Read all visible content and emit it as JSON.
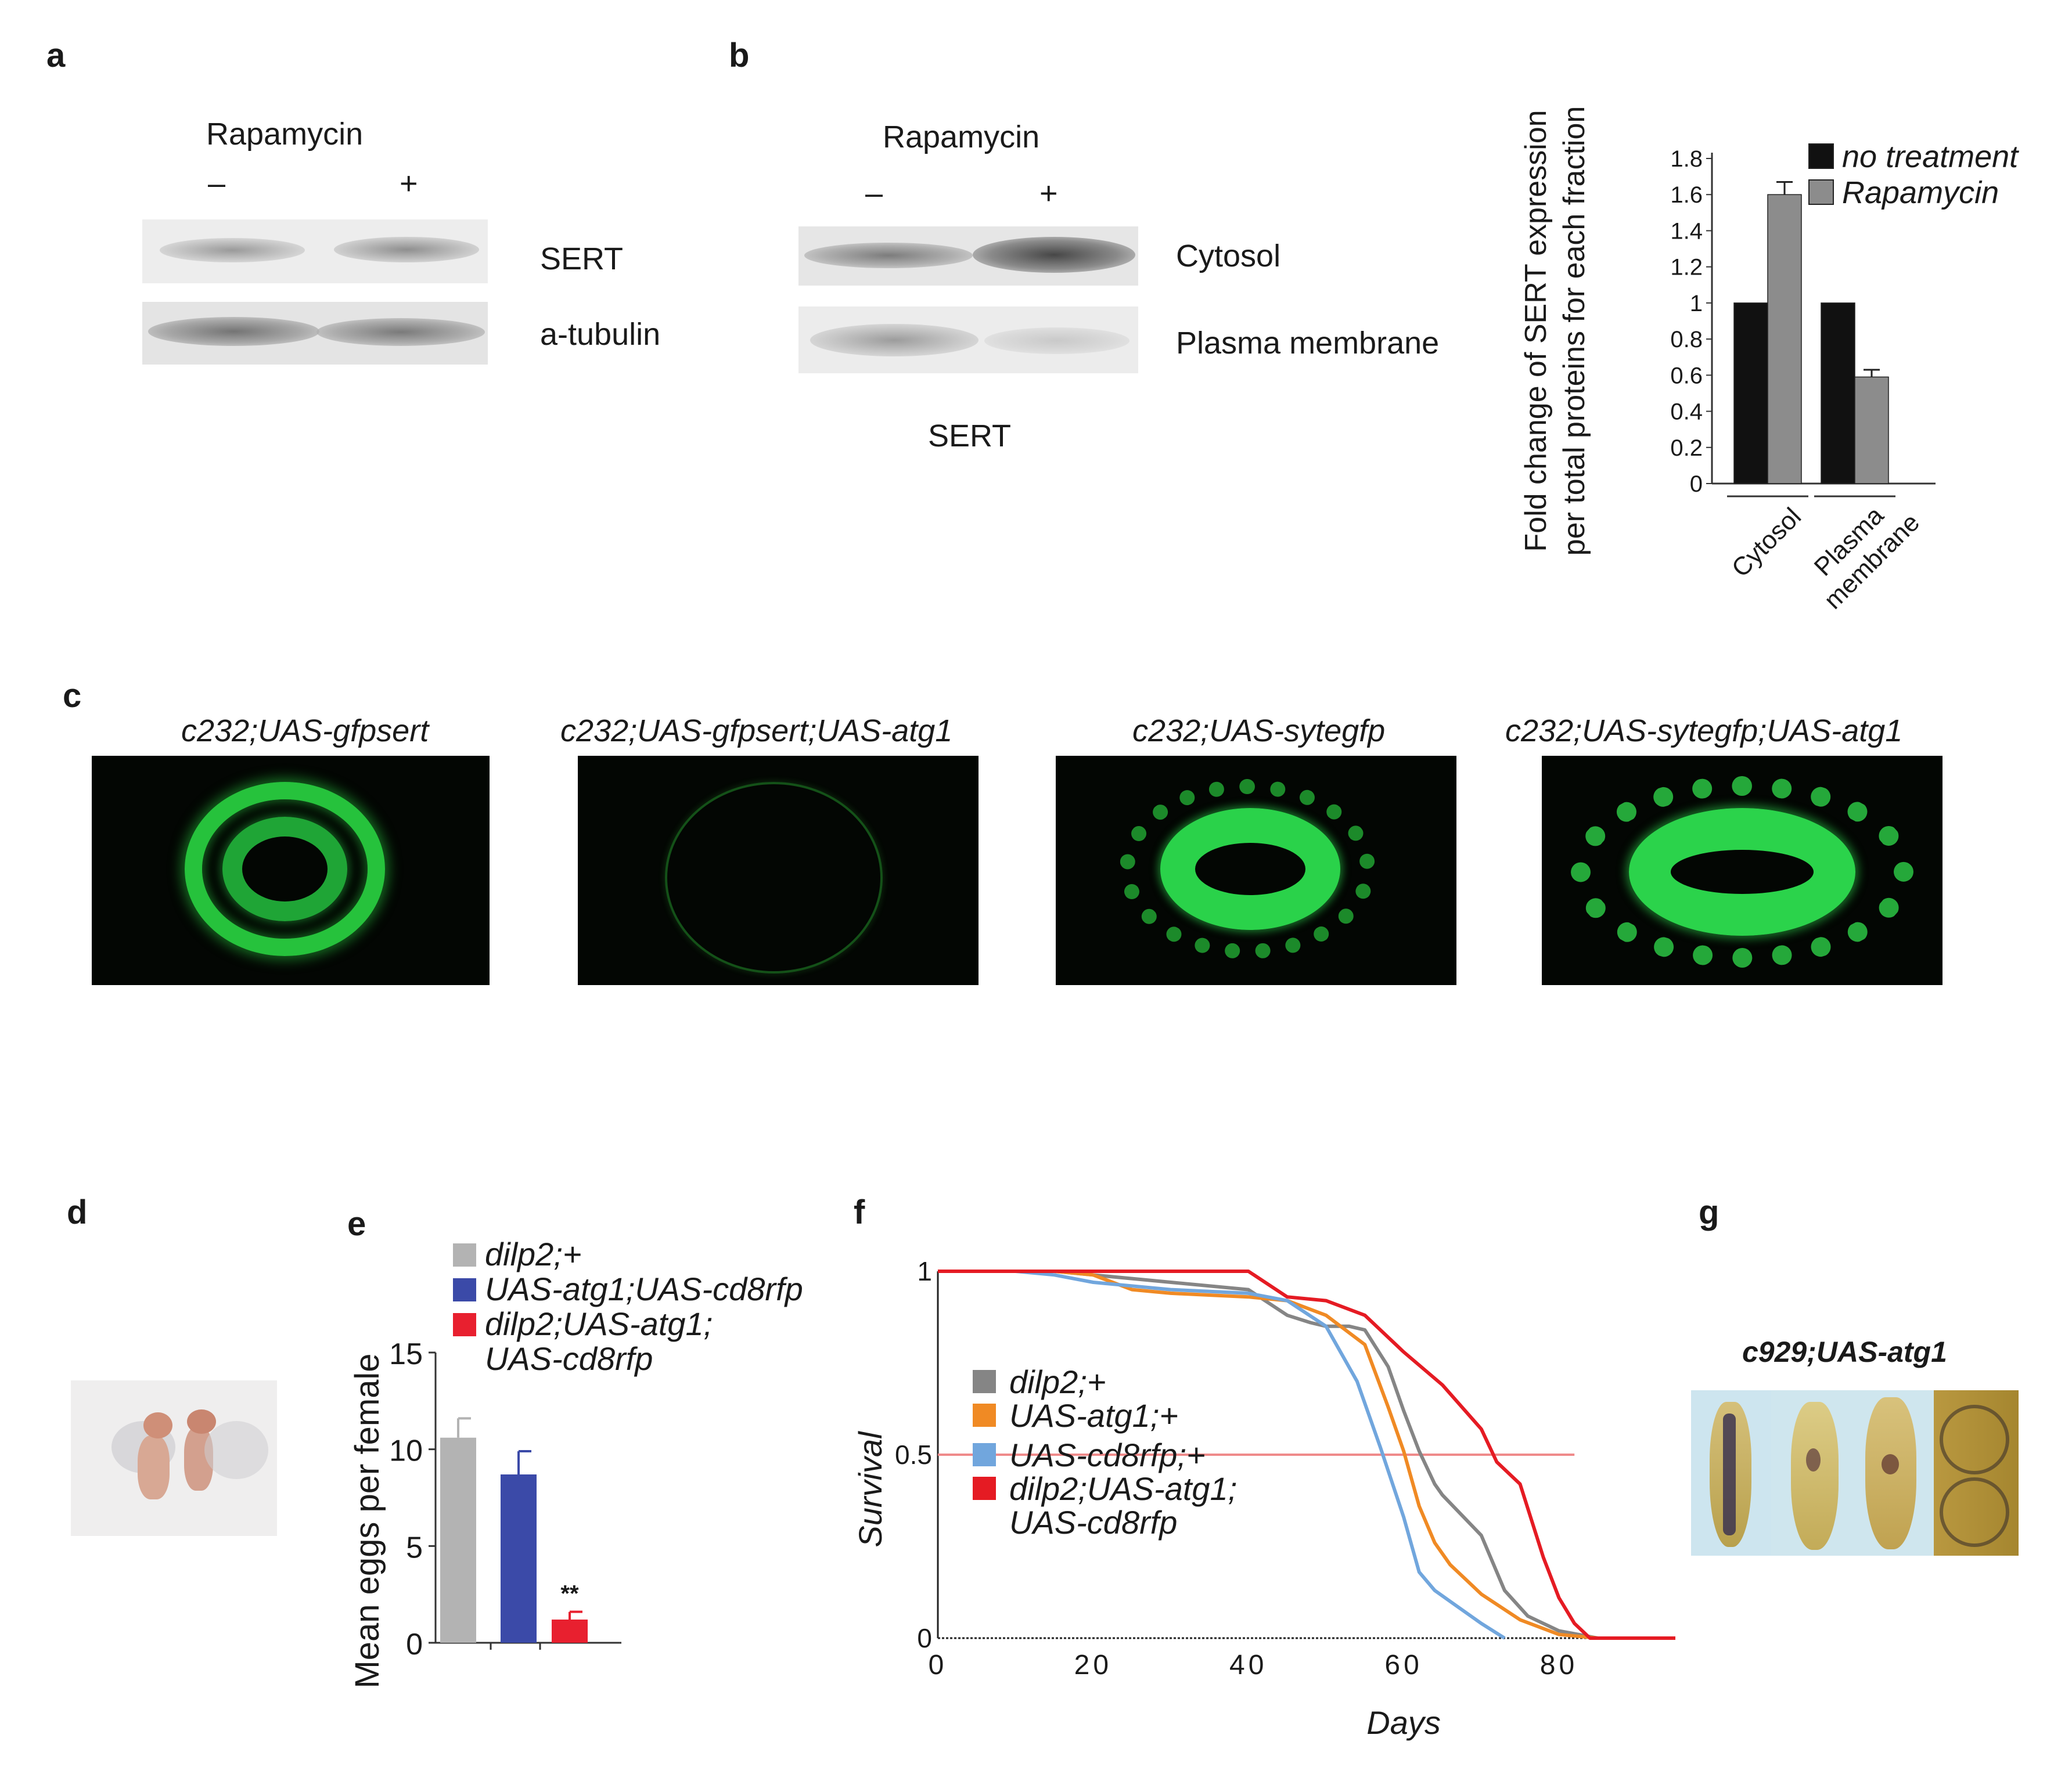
{
  "panels": {
    "a": {
      "label": "a",
      "treatment": "Rapamycin",
      "minus": "–",
      "plus": "+",
      "rows": [
        "SERT",
        "a-tubulin"
      ]
    },
    "b": {
      "label": "b",
      "treatment": "Rapamycin",
      "minus": "–",
      "plus": "+",
      "rows": [
        "Cytosol",
        "Plasma membrane"
      ],
      "caption": "SERT"
    },
    "c": {
      "label": "c",
      "images": [
        "c232;UAS-gfpsert",
        "c232;UAS-gfpsert;UAS-atg1",
        "c232;UAS-sytegfp",
        "c232;UAS-sytegfp;UAS-atg1"
      ]
    },
    "d": {
      "label": "d"
    },
    "e": {
      "label": "e"
    },
    "f": {
      "label": "f"
    },
    "g": {
      "label": "g",
      "title": "c929;UAS-atg1"
    }
  },
  "chart_data": [
    {
      "type": "bar",
      "panel": "b",
      "ylabel_line1": "Fold change of SERT expression",
      "ylabel_line2": "per total proteins for each fraction",
      "categories": [
        "Cytosol",
        "Plasma membrane"
      ],
      "category_lines": [
        [
          "Cytosol"
        ],
        [
          "Plasma",
          "membrane"
        ]
      ],
      "yticks": [
        "0",
        "0.2",
        "0.4",
        "0.6",
        "0.8",
        "1",
        "1.2",
        "1.4",
        "1.6",
        "1.8"
      ],
      "ylim": [
        0,
        1.8
      ],
      "series": [
        {
          "name": "no treatment",
          "color": "#111111",
          "values": [
            1.0,
            1.0
          ],
          "errors": [
            0,
            0
          ]
        },
        {
          "name": "Rapamycin",
          "color": "#8c8c8c",
          "values": [
            1.6,
            0.59
          ],
          "errors": [
            0.07,
            0.04
          ]
        }
      ]
    },
    {
      "type": "bar",
      "panel": "e",
      "ylabel": "Mean eggs per female",
      "yticks": [
        "0",
        "5",
        "10",
        "15"
      ],
      "ylim": [
        0,
        15
      ],
      "legend": [
        {
          "lines": [
            "dilp2;+"
          ],
          "color": "#b3b3b3"
        },
        {
          "lines": [
            "UAS-atg1;UAS-cd8rfp"
          ],
          "color": "#3b4aa8"
        },
        {
          "lines": [
            "dilp2;UAS-atg1;",
            "UAS-cd8rfp"
          ],
          "color": "#e8202f"
        }
      ],
      "values": [
        10.6,
        8.7,
        1.2
      ],
      "errors": [
        1.0,
        1.2,
        0.4
      ],
      "annotation": "**"
    },
    {
      "type": "line",
      "panel": "f",
      "xlabel": "Days",
      "ylabel": "Survival",
      "xticks": [
        "0",
        "20",
        "40",
        "60",
        "80"
      ],
      "yticks": [
        "0",
        "0.5",
        "1"
      ],
      "xlim": [
        0,
        95
      ],
      "ylim": [
        0,
        1
      ],
      "reference_line": 0.5,
      "reference_color": "#ef8a8a",
      "series": [
        {
          "lines": [
            "dilp2;+"
          ],
          "color": "#858585",
          "x": [
            0,
            15,
            20,
            30,
            40,
            45,
            48,
            50,
            53,
            55,
            58,
            60,
            62,
            64,
            65,
            70,
            73,
            76,
            80,
            85
          ],
          "y": [
            1,
            1,
            0.99,
            0.97,
            0.95,
            0.88,
            0.86,
            0.85,
            0.85,
            0.84,
            0.74,
            0.62,
            0.51,
            0.42,
            0.39,
            0.28,
            0.13,
            0.06,
            0.02,
            0
          ]
        },
        {
          "lines": [
            "UAS-atg1;+"
          ],
          "color": "#f08a24",
          "x": [
            0,
            10,
            15,
            20,
            25,
            30,
            40,
            45,
            50,
            55,
            58,
            60,
            62,
            64,
            66,
            70,
            75,
            80,
            85
          ],
          "y": [
            1,
            1,
            1,
            0.99,
            0.95,
            0.94,
            0.93,
            0.92,
            0.88,
            0.8,
            0.63,
            0.51,
            0.36,
            0.26,
            0.2,
            0.12,
            0.05,
            0.01,
            0
          ]
        },
        {
          "lines": [
            "UAS-cd8rfp;+"
          ],
          "color": "#71a6dd",
          "x": [
            0,
            10,
            15,
            20,
            25,
            30,
            40,
            45,
            50,
            54,
            57,
            60,
            62,
            64,
            66,
            70,
            73
          ],
          "y": [
            1,
            1,
            0.99,
            0.97,
            0.96,
            0.95,
            0.94,
            0.92,
            0.85,
            0.7,
            0.52,
            0.33,
            0.18,
            0.13,
            0.1,
            0.04,
            0
          ]
        },
        {
          "lines": [
            "dilp2;UAS-atg1;",
            "UAS-cd8rfp"
          ],
          "color": "#e51b23",
          "x": [
            0,
            20,
            40,
            45,
            50,
            55,
            60,
            65,
            70,
            72,
            75,
            78,
            80,
            82,
            84,
            95
          ],
          "y": [
            1,
            1,
            1,
            0.93,
            0.92,
            0.88,
            0.78,
            0.69,
            0.57,
            0.48,
            0.42,
            0.22,
            0.11,
            0.04,
            0,
            0
          ]
        }
      ]
    }
  ]
}
